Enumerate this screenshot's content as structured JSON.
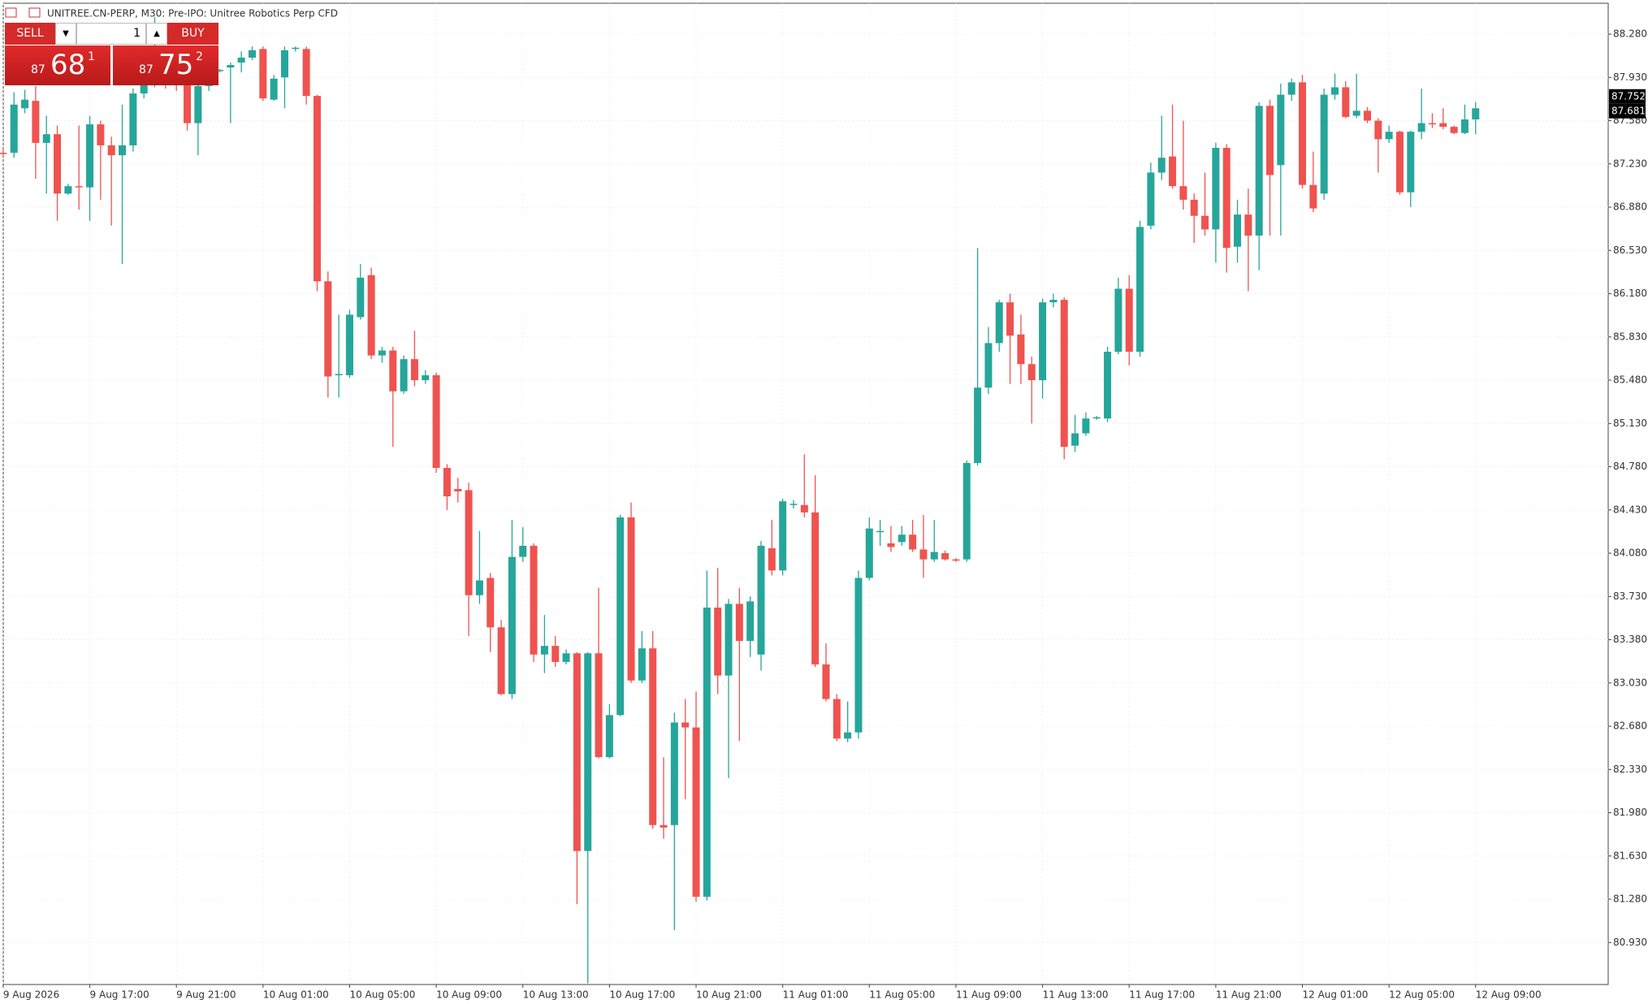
{
  "chart_data": {
    "type": "candlestick",
    "title": "UNITREE.CN-PERP, M30: Pre-IPO: Unitree Robotics Perp CFD",
    "up_color": "#26a69a",
    "down_color": "#ef5350",
    "grid": true,
    "ylim": [
      80.59,
      88.53
    ],
    "yticks": [
      {
        "value": 80.93,
        "label": "80.930"
      },
      {
        "value": 81.28,
        "label": "81.280"
      },
      {
        "value": 81.63,
        "label": "81.630"
      },
      {
        "value": 81.98,
        "label": "81.980"
      },
      {
        "value": 82.33,
        "label": "82.330"
      },
      {
        "value": 82.68,
        "label": "82.680"
      },
      {
        "value": 83.03,
        "label": "83.030"
      },
      {
        "value": 83.38,
        "label": "83.380"
      },
      {
        "value": 83.73,
        "label": "83.730"
      },
      {
        "value": 84.08,
        "label": "84.080"
      },
      {
        "value": 84.43,
        "label": "84.430"
      },
      {
        "value": 84.78,
        "label": "84.780"
      },
      {
        "value": 85.13,
        "label": "85.130"
      },
      {
        "value": 85.48,
        "label": "85.480"
      },
      {
        "value": 85.83,
        "label": "85.830"
      },
      {
        "value": 86.18,
        "label": "86.180"
      },
      {
        "value": 86.53,
        "label": "86.530"
      },
      {
        "value": 86.88,
        "label": "86.880"
      },
      {
        "value": 87.23,
        "label": "87.230"
      },
      {
        "value": 87.58,
        "label": "87.580"
      },
      {
        "value": 87.93,
        "label": "87.930"
      },
      {
        "value": 88.28,
        "label": "88.280"
      }
    ],
    "xticks": [
      "9 Aug 2026",
      "9 Aug 17:00",
      "9 Aug 21:00",
      "10 Aug 01:00",
      "10 Aug 05:00",
      "10 Aug 09:00",
      "10 Aug 13:00",
      "10 Aug 17:00",
      "10 Aug 21:00",
      "11 Aug 01:00",
      "11 Aug 05:00",
      "11 Aug 09:00",
      "11 Aug 13:00",
      "11 Aug 17:00",
      "11 Aug 21:00",
      "12 Aug 01:00",
      "12 Aug 05:00",
      "12 Aug 09:00"
    ],
    "ask": 87.752,
    "bid": 87.681,
    "open": [
      87.32,
      87.32,
      87.68,
      87.74,
      87.4,
      87.47,
      86.99,
      87.05,
      87.04,
      87.55,
      87.38,
      87.3,
      87.38,
      87.8,
      87.88,
      87.92,
      87.9,
      87.88,
      87.56,
      87.86,
      87.98,
      88.01,
      88.05,
      88.09,
      88.16,
      87.75,
      87.93,
      88.16,
      88.16,
      87.78,
      86.28,
      85.52,
      85.52,
      85.99,
      86.33,
      85.68,
      85.72,
      85.39,
      85.65,
      85.48,
      85.52,
      84.77,
      84.6,
      84.59,
      83.74,
      83.88,
      83.48,
      82.94,
      84.05,
      84.14,
      83.26,
      83.33,
      83.2,
      83.27,
      81.67,
      83.27,
      82.43,
      82.77,
      84.37,
      83.05,
      83.31,
      81.88,
      81.88,
      82.71,
      82.67,
      81.3,
      83.64,
      83.09,
      83.67,
      83.37,
      83.26,
      84.12,
      83.94,
      84.47,
      84.47,
      84.41,
      83.18,
      82.9,
      82.58,
      82.63,
      83.88,
      84.25,
      84.16,
      84.17,
      84.23,
      84.11,
      84.03,
      84.08,
      84.03,
      84.03,
      84.81,
      85.42,
      85.78,
      86.11,
      85.85,
      85.61,
      85.48,
      86.11,
      86.13,
      84.95,
      85.05,
      85.17,
      85.17,
      85.71,
      86.22,
      85.71,
      86.73,
      87.16,
      87.29,
      87.05,
      86.94,
      86.81,
      86.7,
      87.36,
      86.56,
      86.82,
      86.65,
      87.7,
      87.22,
      87.79,
      87.89,
      87.06,
      86.99,
      87.79,
      87.85,
      87.62,
      87.66,
      87.58,
      87.43,
      87.49,
      87.0,
      87.49,
      87.56,
      87.56,
      87.53,
      87.48,
      87.59
    ],
    "high": [
      87.36,
      87.81,
      87.83,
      87.86,
      87.62,
      87.54,
      87.07,
      87.54,
      87.62,
      87.58,
      87.45,
      87.71,
      87.84,
      87.95,
      88.42,
      87.98,
      87.95,
      87.92,
      87.9,
      88.0,
      88.0,
      88.05,
      88.14,
      88.18,
      88.18,
      87.95,
      88.18,
      88.18,
      88.18,
      87.79,
      86.36,
      86.01,
      86.05,
      86.42,
      86.39,
      85.75,
      85.75,
      85.68,
      85.88,
      85.56,
      85.54,
      84.8,
      84.69,
      84.65,
      84.26,
      83.92,
      83.54,
      84.35,
      84.29,
      84.16,
      83.58,
      83.41,
      83.3,
      83.28,
      83.28,
      83.8,
      82.86,
      84.39,
      84.49,
      83.45,
      83.45,
      82.43,
      82.79,
      82.9,
      82.96,
      83.94,
      83.96,
      83.71,
      83.8,
      83.73,
      84.18,
      84.35,
      84.52,
      84.51,
      84.88,
      84.71,
      83.35,
      82.94,
      82.88,
      83.94,
      84.37,
      84.35,
      84.3,
      84.3,
      84.35,
      84.39,
      84.35,
      84.1,
      84.04,
      84.83,
      86.55,
      85.91,
      86.13,
      86.18,
      86.01,
      85.67,
      86.14,
      86.18,
      86.15,
      85.2,
      85.22,
      85.19,
      85.75,
      86.31,
      86.33,
      86.77,
      87.24,
      87.62,
      87.71,
      87.58,
      86.99,
      87.16,
      87.4,
      87.39,
      86.94,
      87.03,
      87.73,
      87.75,
      87.88,
      87.92,
      87.95,
      87.33,
      87.84,
      87.96,
      87.9,
      87.96,
      87.69,
      87.6,
      87.54,
      87.5,
      87.5,
      87.84,
      87.64,
      87.68,
      87.54,
      87.71,
      87.73
    ],
    "low": [
      87.28,
      87.28,
      87.64,
      87.11,
      86.99,
      86.77,
      86.98,
      86.86,
      86.77,
      86.94,
      86.73,
      86.42,
      87.33,
      87.76,
      87.85,
      87.84,
      87.82,
      87.5,
      87.3,
      87.82,
      87.97,
      87.56,
      87.97,
      88.07,
      87.74,
      87.74,
      87.68,
      88.14,
      87.71,
      86.2,
      85.34,
      85.34,
      85.5,
      85.97,
      85.65,
      85.62,
      84.94,
      85.37,
      85.43,
      85.45,
      84.73,
      84.43,
      84.49,
      83.41,
      83.67,
      83.28,
      82.93,
      82.9,
      84.01,
      83.2,
      83.11,
      83.16,
      83.18,
      81.24,
      80.6,
      82.42,
      82.42,
      82.76,
      83.03,
      83.03,
      81.85,
      81.77,
      81.03,
      82.09,
      81.26,
      81.27,
      82.94,
      82.26,
      82.56,
      83.24,
      83.13,
      83.9,
      83.9,
      84.44,
      84.37,
      83.16,
      82.88,
      82.56,
      82.55,
      82.58,
      83.86,
      84.14,
      84.09,
      84.14,
      84.09,
      83.88,
      84.01,
      84.02,
      84.01,
      84.01,
      84.79,
      85.37,
      85.71,
      85.45,
      85.45,
      85.13,
      85.33,
      86.07,
      84.84,
      84.9,
      85.03,
      85.16,
      85.14,
      85.69,
      85.6,
      85.67,
      86.7,
      87.1,
      87.03,
      86.86,
      86.59,
      86.65,
      86.43,
      86.35,
      86.43,
      86.2,
      86.37,
      86.65,
      86.65,
      87.74,
      87.03,
      86.84,
      86.94,
      87.75,
      87.6,
      87.6,
      87.56,
      87.16,
      87.4,
      86.98,
      86.88,
      87.43,
      87.52,
      87.51,
      87.47,
      87.47,
      87.47
    ],
    "close": [
      87.31,
      87.71,
      87.75,
      87.4,
      87.47,
      86.99,
      87.05,
      87.04,
      87.55,
      87.38,
      87.3,
      87.38,
      87.8,
      87.88,
      87.92,
      87.9,
      87.88,
      87.56,
      87.86,
      87.96,
      87.99,
      88.03,
      88.09,
      88.15,
      87.76,
      87.92,
      88.15,
      88.17,
      87.78,
      86.28,
      85.51,
      85.53,
      86.01,
      86.31,
      85.68,
      85.72,
      85.39,
      85.65,
      85.48,
      85.52,
      84.77,
      84.54,
      84.58,
      83.74,
      83.86,
      83.48,
      82.94,
      84.05,
      84.14,
      83.26,
      83.33,
      83.2,
      83.27,
      81.67,
      83.27,
      82.43,
      82.77,
      84.37,
      83.05,
      83.31,
      81.88,
      81.86,
      82.71,
      82.67,
      81.3,
      83.64,
      83.09,
      83.67,
      83.37,
      83.69,
      84.14,
      83.94,
      84.5,
      84.48,
      84.41,
      83.18,
      82.9,
      82.58,
      82.63,
      83.88,
      84.28,
      84.26,
      84.13,
      84.23,
      84.11,
      84.03,
      84.09,
      84.03,
      84.02,
      84.81,
      85.42,
      85.78,
      86.11,
      85.84,
      85.61,
      85.48,
      86.11,
      86.13,
      84.94,
      85.05,
      85.17,
      85.18,
      85.71,
      86.22,
      85.71,
      86.72,
      87.16,
      87.28,
      87.05,
      86.94,
      86.81,
      86.7,
      87.36,
      86.55,
      86.82,
      86.65,
      87.7,
      87.14,
      87.79,
      87.89,
      87.06,
      86.87,
      87.79,
      87.85,
      87.61,
      87.66,
      87.58,
      87.43,
      87.49,
      87.0,
      87.49,
      87.56,
      87.55,
      87.53,
      87.48,
      87.59,
      87.68
    ]
  },
  "trade_panel": {
    "sell": "SELL",
    "buy": "BUY",
    "volume": "1",
    "bid": {
      "big": "87",
      "main": "68",
      "small": "1"
    },
    "ask": {
      "big": "87",
      "main": "75",
      "small": "2"
    }
  }
}
